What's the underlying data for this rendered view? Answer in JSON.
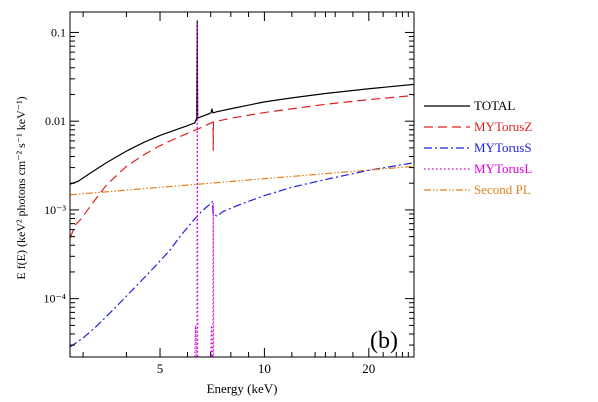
{
  "chart_data": {
    "type": "line",
    "xlabel": "Energy (keV)",
    "ylabel": "E f(E) (keV² photons cm⁻² s⁻¹ keV⁻¹)",
    "x_scale": "log",
    "y_scale": "log",
    "xlim": [
      2.75,
      27
    ],
    "ylim": [
      2.2e-05,
      0.17
    ],
    "x_ticks": [
      {
        "value": 5,
        "label": "5"
      },
      {
        "value": 10,
        "label": "10"
      },
      {
        "value": 20,
        "label": "20"
      }
    ],
    "y_ticks": [
      {
        "value": 0.1,
        "label": "0.1"
      },
      {
        "value": 0.01,
        "label": "0.01"
      },
      {
        "value": 0.001,
        "label": "10⁻³"
      },
      {
        "value": 0.0001,
        "label": "10⁻⁴"
      }
    ],
    "panel_label": "(b)",
    "legend_position": "right",
    "series": [
      {
        "name": "TOTAL",
        "color": "#000000",
        "dash": "solid",
        "points": [
          [
            2.75,
            0.00195
          ],
          [
            2.9,
            0.0021
          ],
          [
            3.1,
            0.0025
          ],
          [
            3.5,
            0.0034
          ],
          [
            4.0,
            0.0046
          ],
          [
            4.5,
            0.0058
          ],
          [
            5.0,
            0.0069
          ],
          [
            5.5,
            0.0079
          ],
          [
            6.0,
            0.0089
          ],
          [
            6.3,
            0.0096
          ],
          [
            6.38,
            0.0108
          ],
          [
            6.4,
            0.135
          ],
          [
            6.42,
            0.0108
          ],
          [
            6.45,
            0.0109
          ],
          [
            6.6,
            0.0113
          ],
          [
            6.95,
            0.0122
          ],
          [
            7.01,
            0.0124
          ],
          [
            7.06,
            0.0137
          ],
          [
            7.1,
            0.0124
          ],
          [
            7.3,
            0.0128
          ],
          [
            8,
            0.0138
          ],
          [
            10,
            0.0165
          ],
          [
            12,
            0.0183
          ],
          [
            15,
            0.0205
          ],
          [
            20,
            0.0232
          ],
          [
            27,
            0.026
          ]
        ]
      },
      {
        "name": "MYTorusZ",
        "color": "#e02020",
        "dash": "dashed",
        "points": [
          [
            2.75,
            0.00048
          ],
          [
            2.85,
            0.00068
          ],
          [
            2.95,
            0.00078
          ],
          [
            3.2,
            0.0012
          ],
          [
            3.5,
            0.0019
          ],
          [
            4.0,
            0.0031
          ],
          [
            4.5,
            0.0042
          ],
          [
            5.0,
            0.0053
          ],
          [
            5.5,
            0.0063
          ],
          [
            6.0,
            0.0073
          ],
          [
            6.4,
            0.0081
          ],
          [
            7.0,
            0.0095
          ],
          [
            7.11,
            0.0098
          ],
          [
            7.12,
            0.0047
          ],
          [
            7.13,
            0.0098
          ],
          [
            8,
            0.0108
          ],
          [
            10,
            0.0125
          ],
          [
            12,
            0.0138
          ],
          [
            15,
            0.0155
          ],
          [
            20,
            0.0175
          ],
          [
            27,
            0.0195
          ]
        ]
      },
      {
        "name": "MYTorusS",
        "color": "#2020e0",
        "dash": "dashdot",
        "points": [
          [
            2.75,
            2.85e-05
          ],
          [
            3.0,
            3.6e-05
          ],
          [
            3.3,
            5e-05
          ],
          [
            3.7,
            7.8e-05
          ],
          [
            4.2,
            0.00013
          ],
          [
            4.7,
            0.000205
          ],
          [
            5.3,
            0.00034
          ],
          [
            5.8,
            0.00054
          ],
          [
            6.2,
            0.00074
          ],
          [
            6.6,
            0.00097
          ],
          [
            7.0,
            0.00118
          ],
          [
            7.08,
            0.00124
          ],
          [
            7.11,
            0.0009
          ],
          [
            7.3,
            0.00085
          ],
          [
            7.6,
            0.00096
          ],
          [
            8.5,
            0.00115
          ],
          [
            10,
            0.00145
          ],
          [
            12,
            0.0018
          ],
          [
            15,
            0.0022
          ],
          [
            20,
            0.0028
          ],
          [
            27,
            0.0034
          ]
        ]
      },
      {
        "name": "MYTorusL",
        "color": "#dd00dd",
        "dash": "dotted",
        "points": [
          [
            6.3,
            2.2e-05
          ],
          [
            6.33,
            5e-05
          ],
          [
            6.36,
            2.2e-05
          ],
          [
            6.39,
            2.2e-05
          ],
          [
            6.4,
            0.125
          ],
          [
            6.42,
            2.2e-05
          ],
          [
            7.0,
            2.2e-05
          ],
          [
            7.04,
            5e-05
          ],
          [
            7.06,
            2.2e-05
          ],
          [
            7.1,
            2.2e-05
          ],
          [
            7.12,
            0.0012
          ],
          [
            7.14,
            2.2e-05
          ]
        ]
      },
      {
        "name": "Second PL",
        "color": "#e08020",
        "dash": "dashdotdot",
        "points": [
          [
            2.75,
            0.00148
          ],
          [
            27,
            0.0031
          ]
        ]
      }
    ]
  }
}
